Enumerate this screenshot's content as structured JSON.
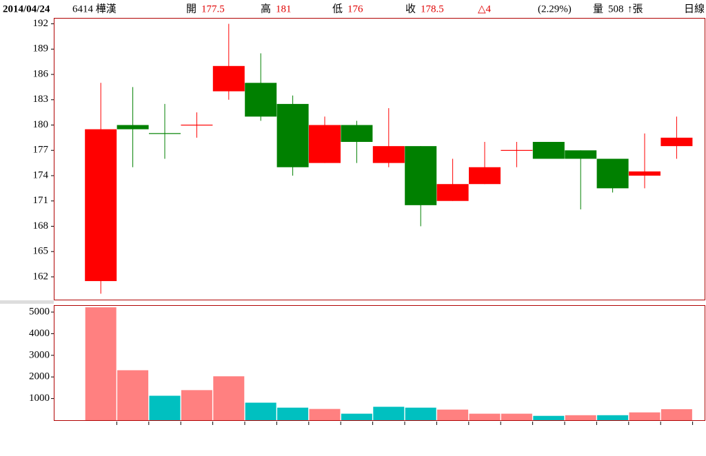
{
  "header": {
    "date": "2014/04/24",
    "stock": "6414 樺漢",
    "open_label": "開",
    "open": 177.5,
    "high_label": "高",
    "high": 181,
    "low_label": "低",
    "low": 176,
    "close_label": "收",
    "close": 178.5,
    "change": "△4",
    "change_pct": "(2.29%)",
    "volume_label": "量",
    "volume": 508,
    "volume_unit": "↑張",
    "period": "日線"
  },
  "chart_data": [
    {
      "type": "candlestick",
      "categories": [
        null,
        null,
        null,
        null,
        null,
        null,
        null,
        null,
        null,
        null,
        null,
        null,
        null,
        null,
        null,
        null,
        null,
        null,
        null
      ],
      "open": [
        161.5,
        180,
        179,
        180,
        184,
        185,
        182.5,
        175.5,
        180,
        175.5,
        177.5,
        171,
        173,
        177,
        178,
        177,
        176,
        174,
        177.5
      ],
      "high": [
        185,
        184.5,
        182.5,
        181.5,
        192,
        188.5,
        183.5,
        181,
        180.5,
        182,
        177.5,
        176,
        178,
        178,
        178,
        177,
        176,
        179,
        181
      ],
      "low": [
        160,
        175,
        176,
        178.5,
        183,
        180.5,
        174,
        175.5,
        175.5,
        175,
        168,
        171,
        173,
        175,
        176,
        170,
        172,
        172.5,
        176
      ],
      "close": [
        179.5,
        179.5,
        179,
        180,
        187,
        181,
        175,
        180,
        178,
        177.5,
        170.5,
        173,
        175,
        177,
        176,
        176,
        172.5,
        174.5,
        178.5
      ],
      "up_color": "#ff0000",
      "down_color": "#008000",
      "ylim": [
        159.3,
        192.7
      ],
      "yticks": [
        162,
        165,
        168,
        171,
        174,
        177,
        180,
        183,
        186,
        189,
        192
      ]
    },
    {
      "type": "bar",
      "values": [
        5220,
        2310,
        1130,
        1390,
        2030,
        810,
        580,
        520,
        300,
        620,
        580,
        490,
        300,
        300,
        200,
        230,
        230,
        360,
        508
      ],
      "colors": [
        "#ff8080",
        "#ff8080",
        "#00c0c0",
        "#ff8080",
        "#ff8080",
        "#00c0c0",
        "#00c0c0",
        "#ff8080",
        "#00c0c0",
        "#00c0c0",
        "#00c0c0",
        "#ff8080",
        "#ff8080",
        "#ff8080",
        "#00c0c0",
        "#ff8080",
        "#00c0c0",
        "#ff8080",
        "#ff8080"
      ],
      "ylim": [
        0,
        5320
      ],
      "yticks": [
        1000,
        2000,
        3000,
        4000,
        5000
      ]
    }
  ]
}
